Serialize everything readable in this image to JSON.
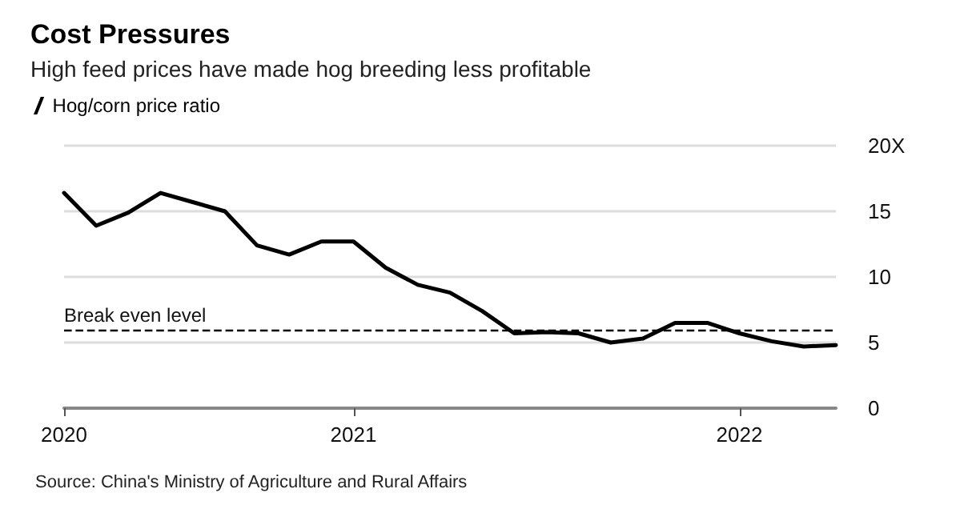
{
  "chart_data": {
    "type": "line",
    "title": "Cost Pressures",
    "subtitle": "High feed prices have made hog breeding less profitable",
    "categories": [
      "2020",
      null,
      null,
      null,
      null,
      null,
      null,
      null,
      null,
      "2021",
      null,
      null,
      null,
      null,
      null,
      null,
      null,
      null,
      null,
      null,
      null,
      "2022",
      null,
      null,
      null
    ],
    "series": [
      {
        "name": "Hog/corn price ratio",
        "color": "#000000",
        "values": [
          16.4,
          13.9,
          14.9,
          16.4,
          15.7,
          15.0,
          12.4,
          11.7,
          12.7,
          12.7,
          10.7,
          9.4,
          8.8,
          7.4,
          5.7,
          5.8,
          5.7,
          5.0,
          5.3,
          6.5,
          6.5,
          5.7,
          5.1,
          4.7,
          4.8
        ]
      }
    ],
    "ylim": [
      0,
      20
    ],
    "yticks": [
      0,
      5,
      10,
      15,
      {
        "value": 20,
        "label": "20X"
      }
    ],
    "grid": "y",
    "legend": "top left",
    "marker": "none",
    "line_style": "solid",
    "ref_lines": [
      {
        "axis": "y",
        "value": 6,
        "label": "Break even level",
        "line_style": "dashed",
        "color": "#000000"
      }
    ],
    "annotations": [
      "Source: China's Ministry of Agriculture and Rural Affairs"
    ]
  }
}
